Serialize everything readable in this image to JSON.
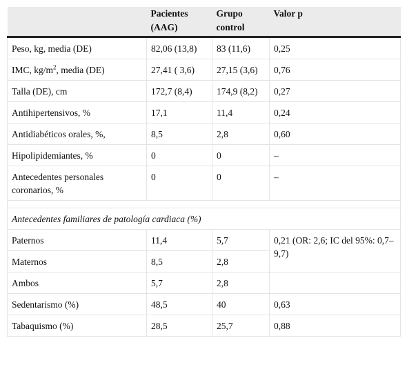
{
  "table": {
    "header": [
      "Pacientes (AAG)",
      "Grupo control",
      "Valor p"
    ],
    "rows": [
      [
        "Peso, kg, media (DE)",
        "82,06 (13,8)",
        "83 (11,6)",
        "0,25"
      ],
      [
        [
          "IMC, kg/m",
          "2",
          ", media (DE)"
        ],
        "27,41 ( 3,6)",
        "27,15 (3,6)",
        "0,76"
      ],
      [
        "Talla (DE), cm",
        "172,7 (8,4)",
        "174,9 (8,2)",
        "0,27"
      ],
      [
        "Antihipertensivos, %",
        "17,1",
        "11,4",
        "0,24"
      ],
      [
        "Antidiabéticos orales, %,",
        "8,5",
        "2,8",
        "0,60"
      ],
      [
        "Hipolipidemiantes, %",
        "0",
        "0",
        "–"
      ],
      [
        "Antecedentes personales coronarios, %",
        "0",
        "0",
        "–"
      ]
    ],
    "section": {
      "title": "Antecedentes familiares de patología cardiaca (%)",
      "rows": [
        [
          "Paternos",
          "11,4",
          "5,7",
          "0,21 (OR: 2,6; IC del 95%: 0,7–9,7)"
        ],
        [
          "Maternos",
          "8,5",
          "2,8"
        ],
        [
          "Ambos",
          "5,7",
          "2,8"
        ],
        [
          "Sedentarismo (%)",
          "48,5",
          "40",
          "0,63"
        ],
        [
          "Tabaquismo (%)",
          "28,5",
          "25,7",
          "0,88"
        ]
      ]
    }
  }
}
